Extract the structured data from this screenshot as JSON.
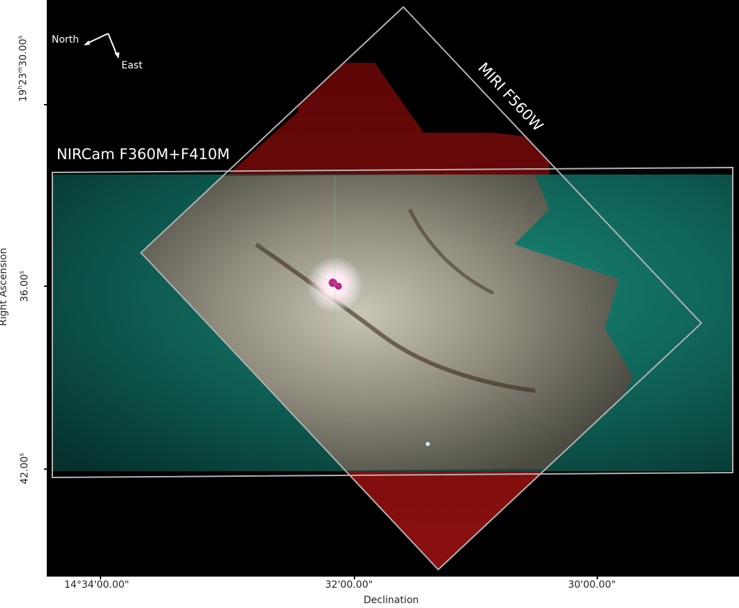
{
  "figure": {
    "xlabel": "Declination",
    "ylabel": "Right Ascension",
    "x_ticks": [
      "14°34'00.00\"",
      "32'00.00\"",
      "30'00.00\""
    ],
    "y_ticks": [
      {
        "h": "19",
        "m": "23",
        "s": "30.00"
      },
      {
        "s": "36.00"
      },
      {
        "s": "42.00"
      }
    ],
    "compass": {
      "north": "North",
      "east": "East"
    },
    "footprints": [
      {
        "label": "NIRCam F360M+F410M",
        "color": "#b4b4b4"
      },
      {
        "label": "MIRI F560W",
        "color": "#b4b4b4"
      }
    ],
    "colors": {
      "nircam_field": "#0f6a5e",
      "miri_field": "#7a0a0a",
      "overlap": "#a9a496",
      "background": "#000000"
    }
  }
}
